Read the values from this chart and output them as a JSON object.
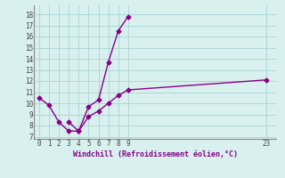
{
  "line1_x": [
    0,
    1,
    2,
    3,
    4,
    5,
    6,
    7,
    8,
    9
  ],
  "line1_y": [
    10.5,
    9.8,
    8.3,
    7.5,
    7.5,
    9.7,
    10.3,
    13.7,
    16.5,
    17.8
  ],
  "line2_x": [
    3,
    4,
    5,
    6,
    7,
    8,
    9,
    23
  ],
  "line2_y": [
    8.3,
    7.5,
    8.8,
    9.3,
    10.0,
    10.7,
    11.2,
    12.1
  ],
  "color": "#880088",
  "bg_color": "#d8f0ee",
  "grid_color": "#b0d8d8",
  "xlabel": "Windchill (Refroidissement éolien,°C)",
  "xlim": [
    -0.5,
    24
  ],
  "ylim": [
    6.8,
    18.8
  ],
  "xticks": [
    0,
    1,
    2,
    3,
    4,
    5,
    6,
    7,
    8,
    9,
    23
  ],
  "yticks": [
    7,
    8,
    9,
    10,
    11,
    12,
    13,
    14,
    15,
    16,
    17,
    18
  ],
  "marker": "D",
  "markersize": 2.5,
  "linewidth": 1.0
}
